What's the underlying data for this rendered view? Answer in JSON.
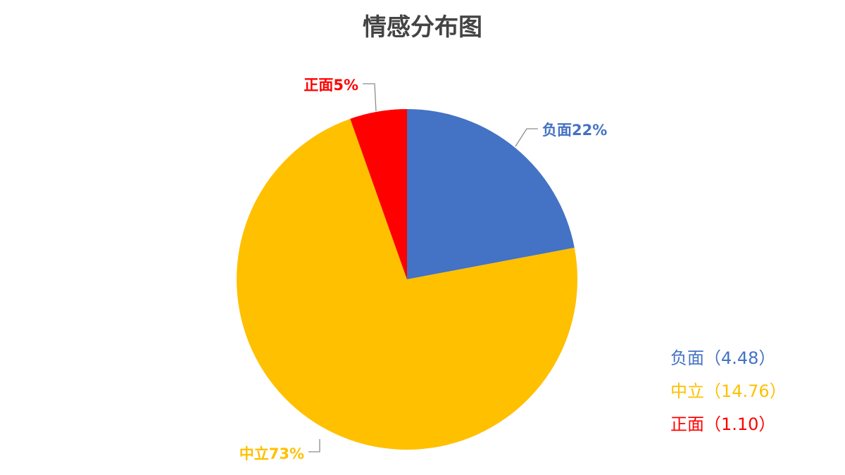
{
  "chart_data": {
    "type": "pie",
    "title": "情感分布图",
    "start_angle_deg": 0,
    "direction": "clockwise",
    "slices": [
      {
        "name": "负面",
        "value": 4.48,
        "percent_label": "负面22%",
        "legend_label": "负面（4.48）",
        "color": "#4472C4"
      },
      {
        "name": "中立",
        "value": 14.76,
        "percent_label": "中立73%",
        "legend_label": "中立（14.76）",
        "color": "#FFC000"
      },
      {
        "name": "正面",
        "value": 1.1,
        "percent_label": "正面5%",
        "legend_label": "正面（1.10）",
        "color": "#FF0000"
      }
    ],
    "legend_position": "bottom-right"
  }
}
